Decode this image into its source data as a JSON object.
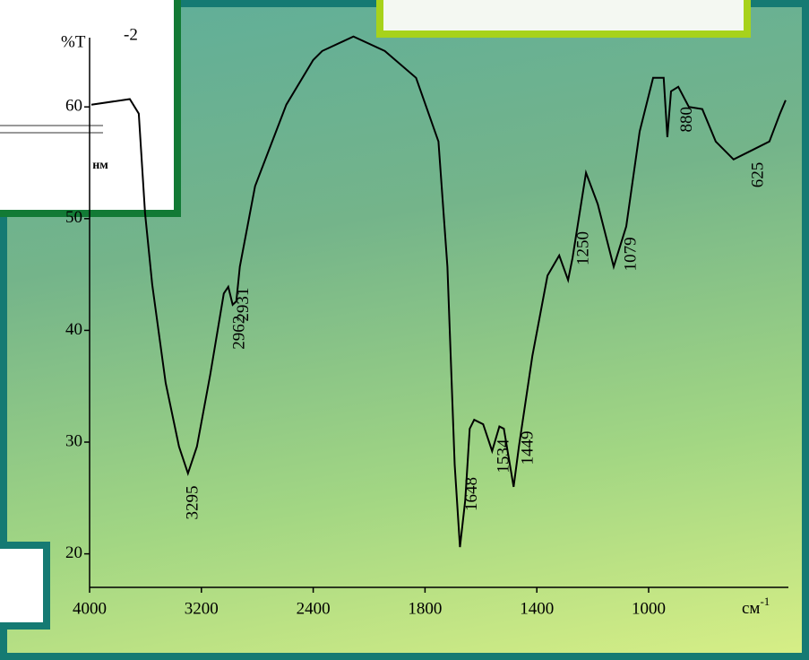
{
  "chart_data": {
    "type": "line",
    "ylabel": "%T",
    "xlabel": "см",
    "xlabel_superscript": "-1",
    "background_texts": [
      "-2",
      "нм"
    ],
    "x": [
      3987,
      3712,
      3648,
      3603,
      3552,
      3456,
      3360,
      3296,
      3232,
      3136,
      3040,
      3008,
      2976,
      2950,
      2925,
      2816,
      2592,
      2400,
      2336,
      2112,
      1944,
      1832,
      1752,
      1720,
      1694,
      1675,
      1656,
      1640,
      1624,
      1592,
      1560,
      1534,
      1518,
      1483,
      1464,
      1416,
      1362,
      1320,
      1288,
      1272,
      1224,
      1182,
      1125,
      1080,
      1032,
      984,
      946,
      933,
      920,
      894,
      856,
      808,
      760,
      696,
      632,
      568,
      530,
      510
    ],
    "values": [
      60.2,
      60.7,
      59.4,
      50.5,
      44.1,
      35.3,
      29.6,
      27.2,
      29.6,
      36.1,
      43.3,
      43.9,
      42.3,
      42.6,
      45.7,
      52.9,
      60.2,
      64.2,
      65.0,
      66.3,
      65.0,
      62.6,
      56.9,
      45.7,
      28.0,
      20.6,
      24.8,
      31.2,
      32.0,
      31.6,
      29.2,
      31.4,
      31.2,
      26.0,
      29.6,
      37.7,
      44.9,
      46.7,
      44.5,
      46.5,
      54.1,
      51.3,
      45.7,
      49.3,
      57.8,
      62.6,
      62.6,
      57.3,
      61.4,
      61.8,
      60.0,
      59.8,
      56.9,
      55.3,
      56.1,
      56.9,
      59.4,
      60.6
    ],
    "color": "#000000",
    "peaks": [
      3295,
      2962,
      2931,
      1648,
      1534,
      1449,
      1250,
      1079,
      880,
      625
    ],
    "xlim": [
      4000,
      500
    ],
    "xbreak": 2000,
    "xticks": [
      4000,
      3200,
      2400,
      1800,
      1400,
      1000
    ],
    "ylim": [
      17,
      67
    ],
    "yticks": [
      20,
      30,
      40,
      50,
      60
    ]
  }
}
